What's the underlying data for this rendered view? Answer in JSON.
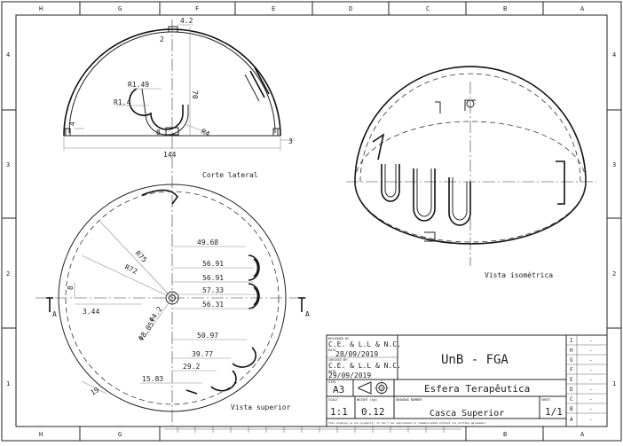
{
  "zones": {
    "columns": [
      "H",
      "G",
      "F",
      "E",
      "D",
      "C",
      "B",
      "A"
    ],
    "rows": [
      "4",
      "3",
      "2",
      "1"
    ]
  },
  "views": {
    "side": {
      "label": "Corte lateral",
      "dims": {
        "top_width": "4.2",
        "slot_width": "2",
        "height": "70",
        "r_outer": "R1.49",
        "r_inner": "R1.4",
        "r4": "R4",
        "base_step": "4",
        "base_slot": "8",
        "base_right": "3",
        "total": "144"
      }
    },
    "top": {
      "label": "Vista superior",
      "dims": {
        "r75": "R75",
        "r72": "R72",
        "hole_inner": "Φ4.2",
        "hole_outer": "Φ8.05",
        "offset_8": "8",
        "offset_344": "3.44",
        "d1": "49.68",
        "d2": "56.91",
        "d3": "56.91",
        "d4": "57.33",
        "d5": "56.31",
        "d6": "50.97",
        "d7": "39.77",
        "d8": "29.2",
        "d9": "15.83",
        "d10": "19"
      },
      "section_mark": "A"
    },
    "iso": {
      "label": "Vista isométrica"
    }
  },
  "title_block": {
    "designed_by_label": "DESIGNED BY",
    "designed_by": "C.E. & L.L & N.C.",
    "date_label1": "DATE",
    "date1": "28/09/2019",
    "checked_by_label": "CHECKED BY",
    "checked_by": "C.E. & L.L & N.C.",
    "date_label2": "DATE",
    "date2": "29/09/2019",
    "size_label": "SIZE",
    "size": "A3",
    "company": "UnB - FGA",
    "title": "Esfera Terapêutica",
    "scale_label": "SCALE",
    "scale": "1:1",
    "weight_label": "WEIGHT (kg)",
    "weight": "0.12",
    "drawing_number_label": "DRAWING NUMBER",
    "drawing_number": "Casca Superior",
    "sheet_label": "SHEET",
    "sheet": "1/1",
    "footer": "This drawing is our property; it can't be reproduced or communicated without our written agreement.",
    "revisions": [
      "I",
      "H",
      "G",
      "F",
      "E",
      "D",
      "C",
      "B",
      "A"
    ],
    "revision_dash": "-"
  }
}
